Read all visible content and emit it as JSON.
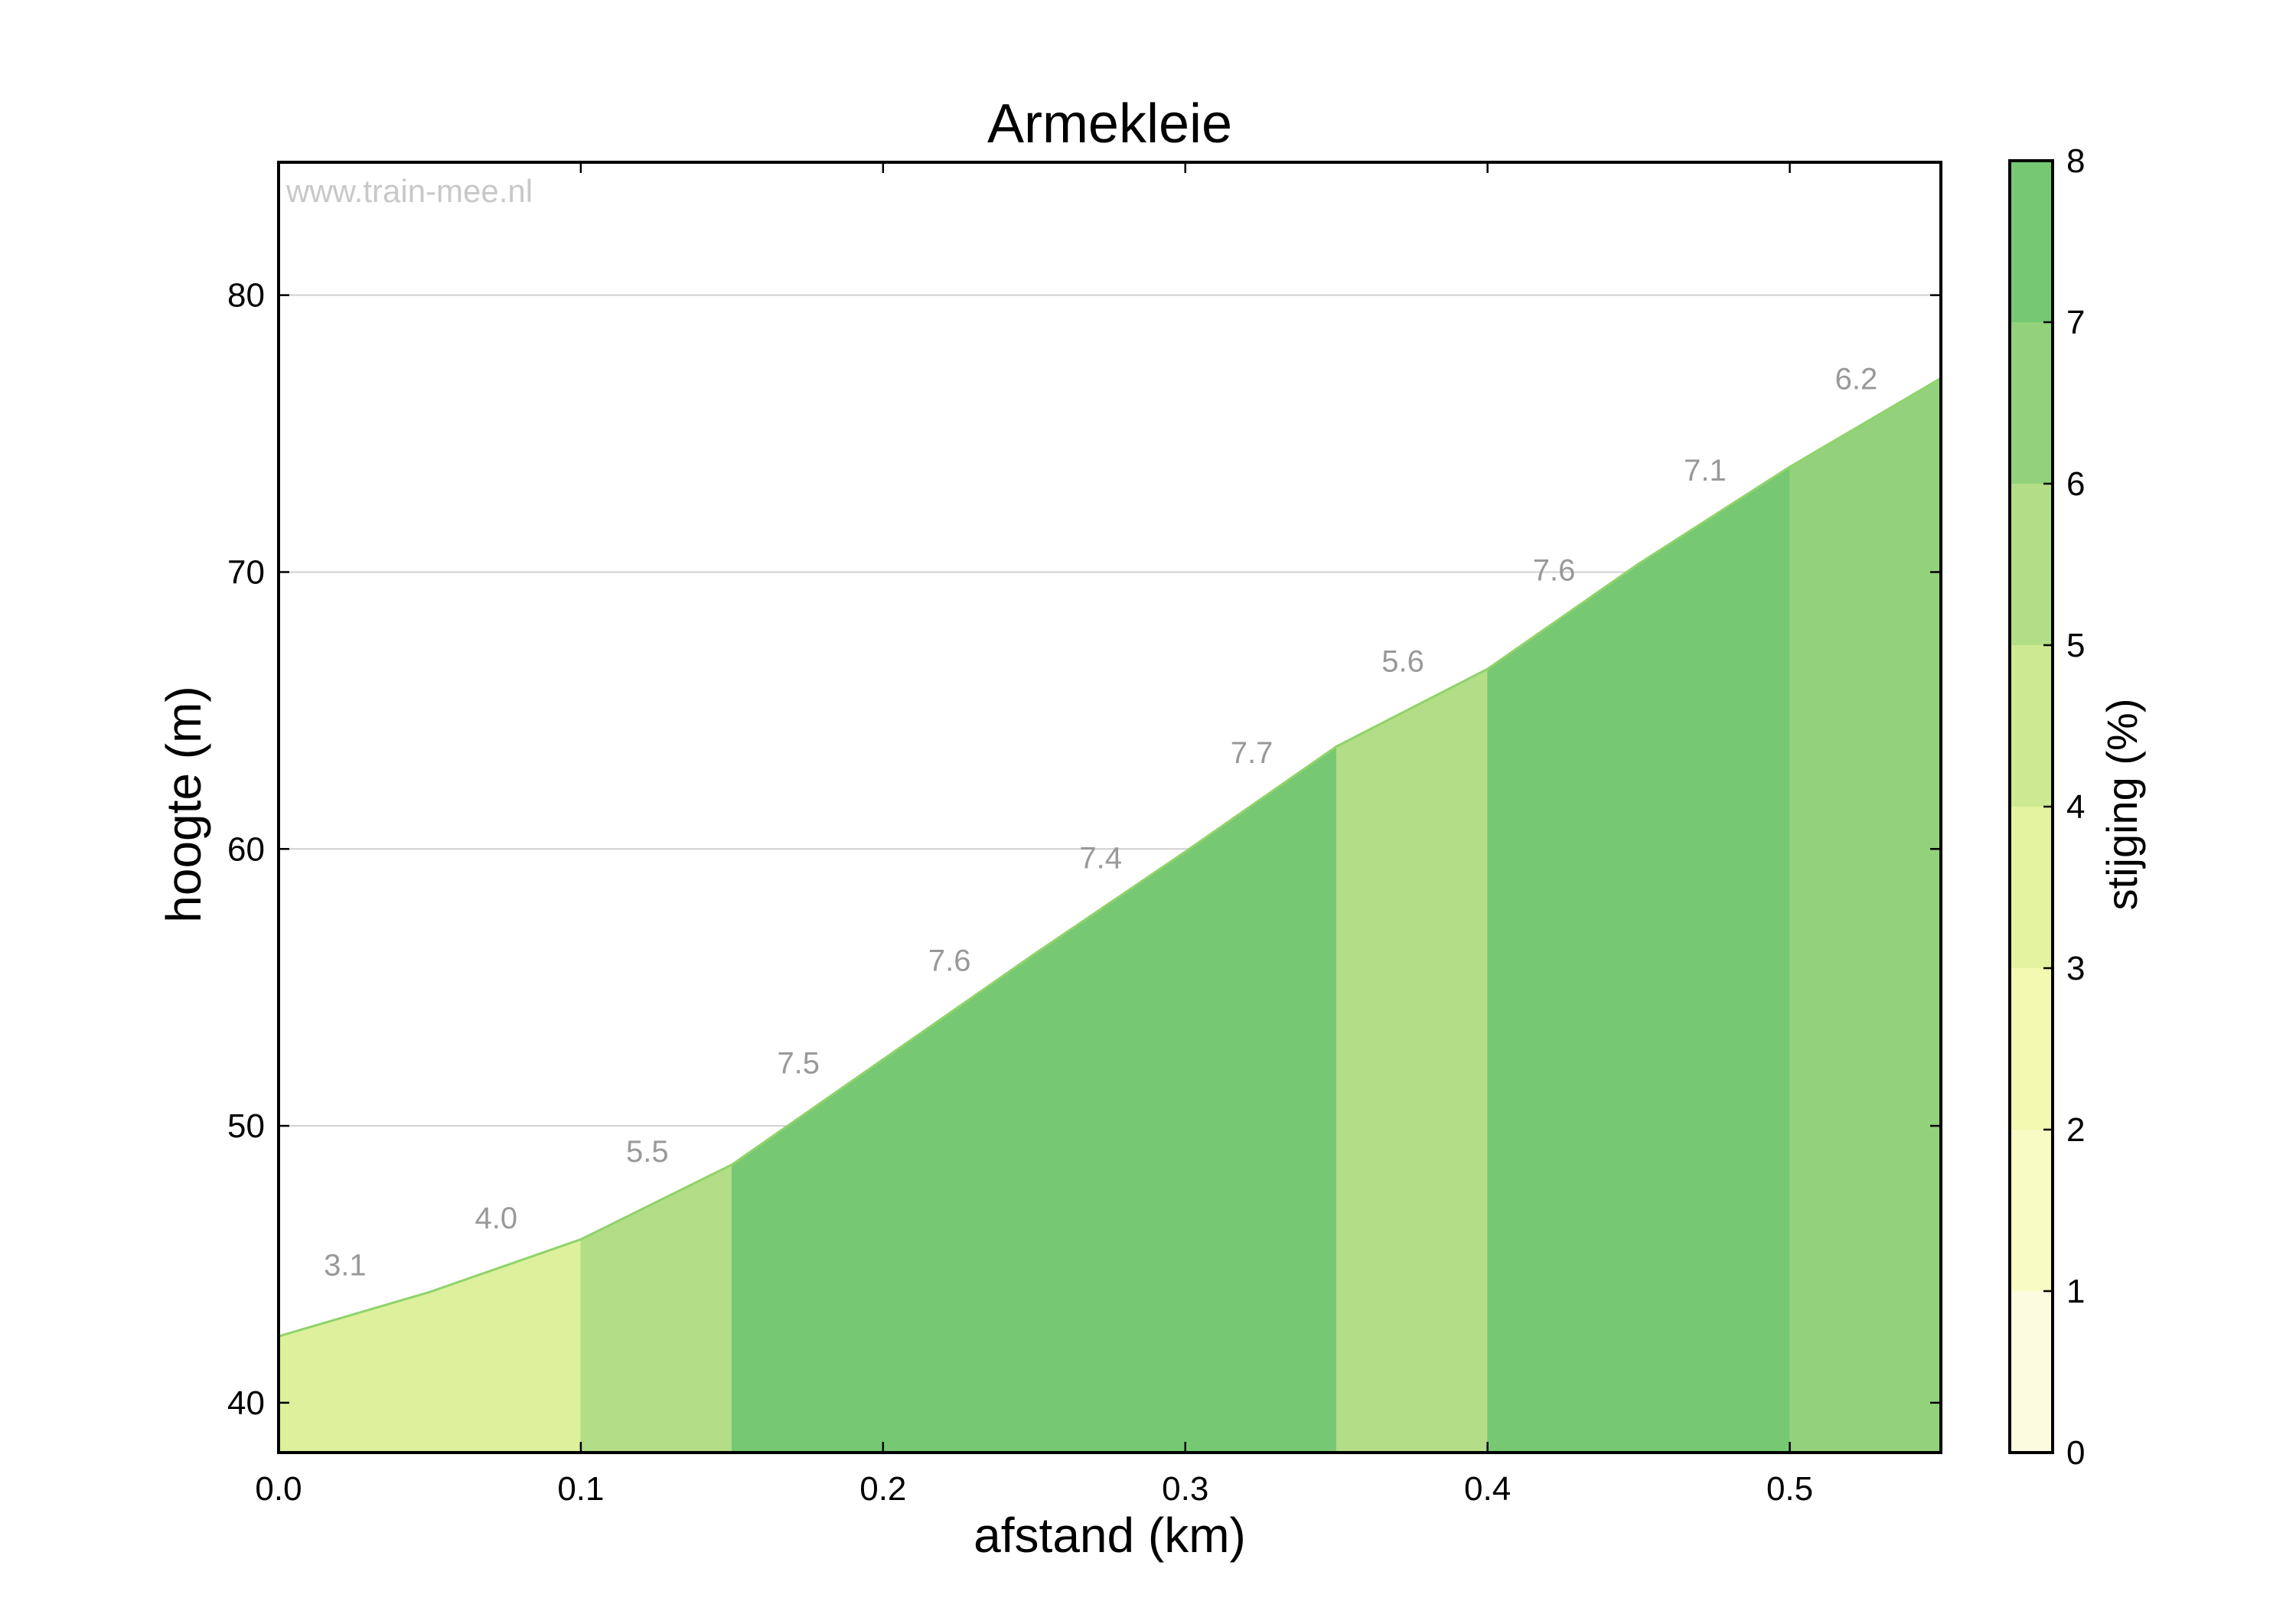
{
  "chart_data": {
    "type": "area",
    "title": "Armekleie",
    "xlabel": "afstand (km)",
    "ylabel": "hoogte (m)",
    "watermark": "www.train-mee.nl",
    "xlim": [
      0,
      0.55
    ],
    "ylim": [
      38.2,
      84.8
    ],
    "x_ticks": [
      0.0,
      0.1,
      0.2,
      0.3,
      0.4,
      0.5
    ],
    "x_tick_labels": [
      "0.0",
      "0.1",
      "0.2",
      "0.3",
      "0.4",
      "0.5"
    ],
    "y_ticks": [
      40,
      50,
      60,
      70,
      80
    ],
    "y_tick_labels": [
      "40",
      "50",
      "60",
      "70",
      "80"
    ],
    "grid": "horizontal",
    "profile": {
      "x": [
        0.0,
        0.05,
        0.1,
        0.15,
        0.2,
        0.25,
        0.3,
        0.35,
        0.4,
        0.45,
        0.5,
        0.55
      ],
      "y": [
        42.4,
        44.0,
        45.9,
        48.6,
        52.4,
        56.2,
        59.9,
        63.7,
        66.5,
        70.3,
        73.8,
        77.0
      ]
    },
    "segments": [
      {
        "start": 0.0,
        "end": 0.1,
        "color": "#ddf09c"
      },
      {
        "start": 0.1,
        "end": 0.15,
        "color": "#b3dd86"
      },
      {
        "start": 0.15,
        "end": 0.35,
        "color": "#76c873"
      },
      {
        "start": 0.35,
        "end": 0.4,
        "color": "#b3dd86"
      },
      {
        "start": 0.4,
        "end": 0.5,
        "color": "#76c873"
      },
      {
        "start": 0.5,
        "end": 0.55,
        "color": "#93d27b"
      }
    ],
    "gradient_labels": [
      {
        "x": 0.022,
        "y": 44.6,
        "text": "3.1"
      },
      {
        "x": 0.072,
        "y": 46.3,
        "text": "4.0"
      },
      {
        "x": 0.122,
        "y": 48.7,
        "text": "5.5"
      },
      {
        "x": 0.172,
        "y": 51.9,
        "text": "7.5"
      },
      {
        "x": 0.222,
        "y": 55.6,
        "text": "7.6"
      },
      {
        "x": 0.272,
        "y": 59.3,
        "text": "7.4"
      },
      {
        "x": 0.322,
        "y": 63.1,
        "text": "7.7"
      },
      {
        "x": 0.372,
        "y": 66.4,
        "text": "5.6"
      },
      {
        "x": 0.422,
        "y": 69.7,
        "text": "7.6"
      },
      {
        "x": 0.472,
        "y": 73.3,
        "text": "7.1"
      },
      {
        "x": 0.522,
        "y": 76.6,
        "text": "6.2"
      }
    ],
    "colorbar": {
      "label": "stijging (%)",
      "range": [
        0,
        8
      ],
      "ticks": [
        "0",
        "1",
        "2",
        "3",
        "4",
        "5",
        "6",
        "7",
        "8"
      ],
      "colors": [
        "#fdfbdf",
        "#f9fbc4",
        "#f2f9b0",
        "#e4f3a0",
        "#cdea93",
        "#b3dd86",
        "#93d27b",
        "#76c873"
      ]
    },
    "colors": {
      "outline": "#8fd36b",
      "grid": "#d0d0d0",
      "label_text": "#999999",
      "watermark_text": "#c8c8c8"
    }
  }
}
